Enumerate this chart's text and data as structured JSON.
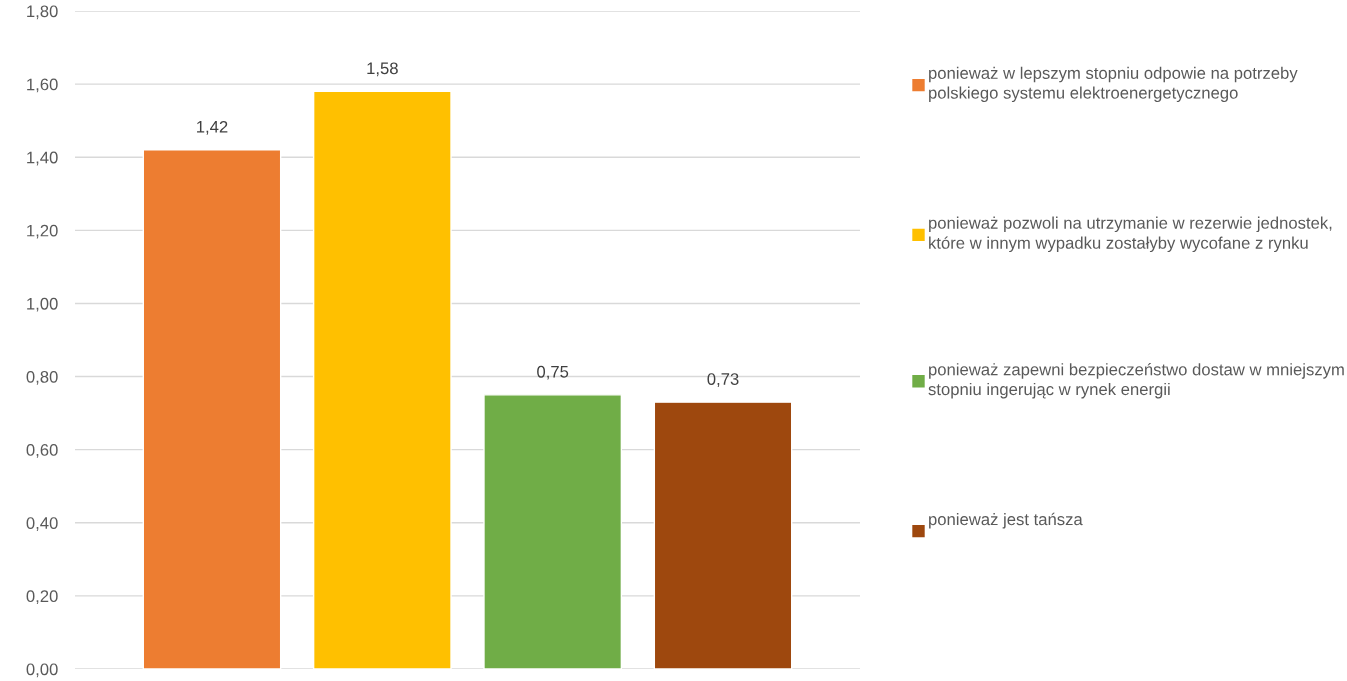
{
  "chart_data": {
    "type": "bar",
    "categories": [
      null
    ],
    "series": [
      {
        "name": "ponieważ w lepszym stopniu odpowie na potrzeby polskiego systemu elektroenergetycznego",
        "color": "#ed7d31",
        "values": [
          1.42
        ],
        "value_labels": [
          "1,42"
        ]
      },
      {
        "name": "ponieważ pozwoli na utrzymanie w rezerwie jednostek, które w innym wypadku zostałyby wycofane z rynku",
        "color": "#ffc000",
        "values": [
          1.58
        ],
        "value_labels": [
          "1,58"
        ]
      },
      {
        "name": "ponieważ zapewni bezpieczeństwo dostaw w mniejszym stopniu ingerując w rynek energii",
        "color": "#70ad47",
        "values": [
          0.75
        ],
        "value_labels": [
          "0,75"
        ]
      },
      {
        "name": "ponieważ jest tańsza",
        "color": "#9e480e",
        "values": [
          0.73
        ],
        "value_labels": [
          "0,73"
        ]
      }
    ],
    "ylim": [
      0,
      1.8
    ],
    "yticks": [
      {
        "value": 0,
        "label": "0,00"
      },
      {
        "value": 0.2,
        "label": "0,20"
      },
      {
        "value": 0.4,
        "label": "0,40"
      },
      {
        "value": 0.6,
        "label": "0,60"
      },
      {
        "value": 0.8,
        "label": "0,80"
      },
      {
        "value": 1.0,
        "label": "1,00"
      },
      {
        "value": 1.2,
        "label": "1,20"
      },
      {
        "value": 1.4,
        "label": "1,40"
      },
      {
        "value": 1.6,
        "label": "1,60"
      },
      {
        "value": 1.8,
        "label": "1,80"
      }
    ],
    "grid": "y",
    "legend": "right"
  }
}
